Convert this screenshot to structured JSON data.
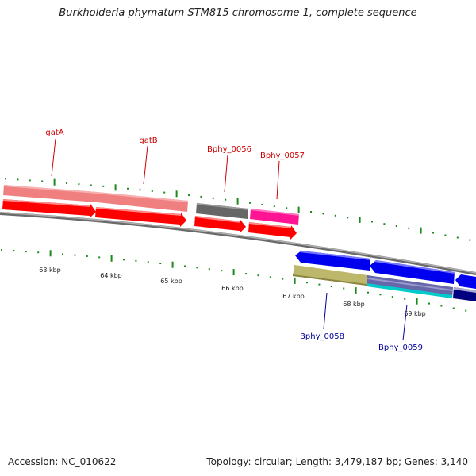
{
  "title": "Burkholderia phymatum STM815 chromosome 1, complete sequence",
  "footer": {
    "accession": "Accession: NC_010622",
    "topology": "Topology: circular; Length: 3,479,187 bp; Genes: 3,140"
  },
  "colors": {
    "tick": "#1a8a1a",
    "backbone": "#888888",
    "forward_gene": "#ff0000",
    "reverse_gene": "#0000ee",
    "label_forward": "#cc0000",
    "label_reverse": "#000099"
  },
  "gene_labels": {
    "gatA": "gatA",
    "gatB": "gatB",
    "bphy_0056": "Bphy_0056",
    "bphy_0057": "Bphy_0057",
    "bphy_0058": "Bphy_0058",
    "bphy_0059": "Bphy_0059"
  },
  "scale_labels": {
    "k63": "63 kbp",
    "k64": "64 kbp",
    "k65": "65 kbp",
    "k66": "66 kbp",
    "k67": "67 kbp",
    "k68": "68 kbp",
    "k69": "69 kbp"
  }
}
